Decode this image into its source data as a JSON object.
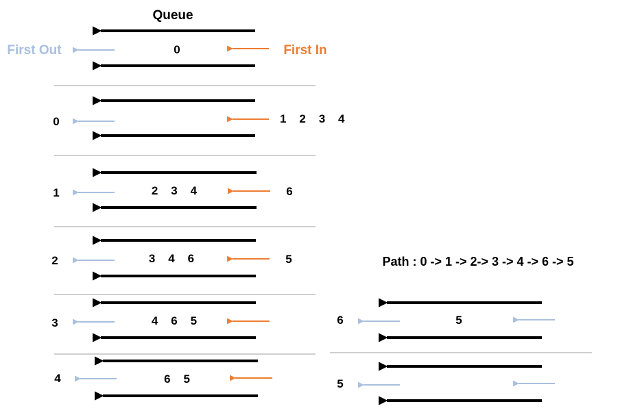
{
  "colors": {
    "pipe": "#000000",
    "in_arrow": "#ED7D31",
    "out_arrow": "#A9BFDE",
    "divider": "#BFBFBF",
    "first_out_text": "#A9BFDE",
    "first_in_text": "#ED7D31",
    "text": "#000000"
  },
  "header": {
    "title": "Queue",
    "first_out": "First Out",
    "first_in": "First In"
  },
  "path": {
    "label": "Path : 0 -> 1 -> 2-> 3 -> 4 -> 6 -> 5"
  },
  "steps": [
    {
      "dequeued": "",
      "queue": "0",
      "incoming": ""
    },
    {
      "dequeued": "0",
      "queue": "",
      "incoming": "1    2    3    4"
    },
    {
      "dequeued": "1",
      "queue": "2    3    4",
      "incoming": "6"
    },
    {
      "dequeued": "2",
      "queue": "3    4    6",
      "incoming": "5"
    },
    {
      "dequeued": "3",
      "queue": "4    6    5",
      "incoming": ""
    },
    {
      "dequeued": "4",
      "queue": "6    5",
      "incoming": ""
    },
    {
      "dequeued": "6",
      "queue": "5",
      "incoming": ""
    },
    {
      "dequeued": "5",
      "queue": "",
      "incoming": ""
    }
  ]
}
